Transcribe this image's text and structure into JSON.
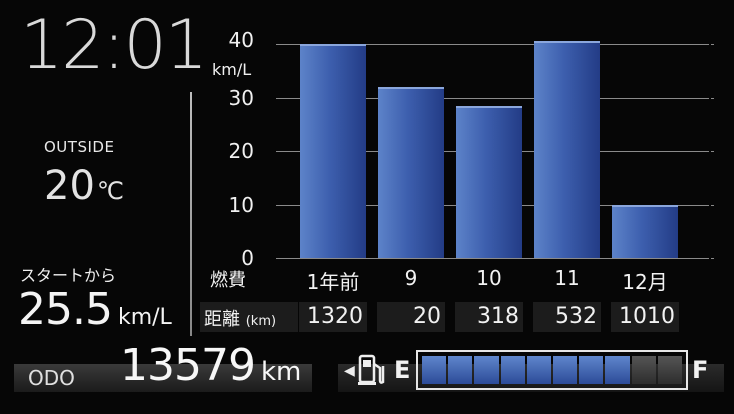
{
  "clock": {
    "time": "12:01"
  },
  "outside": {
    "label": "OUTSIDE",
    "temp": "20",
    "unit": "℃"
  },
  "since_start": {
    "label": "スタートから",
    "value": "25.5",
    "unit": "km/L"
  },
  "chart_data": {
    "type": "bar",
    "ylabel": "km/L",
    "ylim": [
      0,
      40
    ],
    "yticks": [
      "0",
      "10",
      "20",
      "30",
      "40"
    ],
    "row_label": "燃費",
    "categories": [
      "1年前",
      "9",
      "10",
      "11",
      "12月"
    ],
    "values": [
      40,
      32,
      28.5,
      40.5,
      10
    ],
    "grid": true
  },
  "distance": {
    "label": "距離",
    "unit": "(km)",
    "values": [
      "1320",
      "20",
      "318",
      "532",
      "1010"
    ]
  },
  "odo": {
    "label": "ODO",
    "value": "13579",
    "unit": "km"
  },
  "fuel": {
    "arrow": "◀",
    "empty_label": "E",
    "full_label": "F",
    "total_segments": 10,
    "filled_segments": 8,
    "icon": "fuel-pump-icon"
  }
}
